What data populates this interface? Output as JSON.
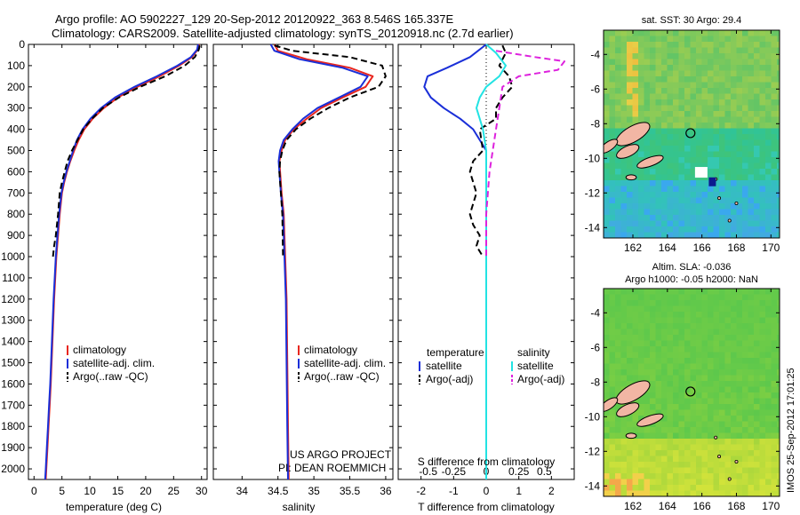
{
  "header": {
    "title_line1": "Argo profile: AO 5902227_129 20-Sep-2012 20120922_363 8.546S 165.337E",
    "title_line2": "Climatology: CARS2009. Satellite-adjusted climatology: synTS_20120918.nc (2.7d earlier)"
  },
  "footer": {
    "project_line1": "US ARGO PROJECT",
    "project_line2": "PI: DEAN ROEMMICH",
    "timestamp": "IMOS 25-Sep-2012 17:01:25"
  },
  "colors": {
    "climatology": "#e8271f",
    "satellite": "#1a2fd8",
    "argo": "#000000",
    "temp_satellite": "#1a2fd8",
    "temp_argo": "#000000",
    "sal_satellite": "#22e3e3",
    "sal_argo": "#dd22dd"
  },
  "chart_data": [
    {
      "id": "temperature",
      "type": "line",
      "xlabel": "temperature (deg C)",
      "xlim": [
        -1,
        31
      ],
      "xticks": [
        0,
        5,
        10,
        15,
        20,
        25,
        30
      ],
      "ylim": [
        2050,
        0
      ],
      "yticks": [
        0,
        100,
        200,
        300,
        400,
        500,
        600,
        700,
        800,
        900,
        1000,
        1100,
        1200,
        1300,
        1400,
        1500,
        1600,
        1700,
        1800,
        1900,
        2000
      ],
      "legend": [
        "climatology",
        "satellite-adj. clim.",
        "Argo(..raw -QC)"
      ],
      "legend_position": "lower-right",
      "series": [
        {
          "name": "climatology",
          "style": "solid",
          "x": [
            29.6,
            29.3,
            28.3,
            26.0,
            22.5,
            18.5,
            15.0,
            12.5,
            10.5,
            9.0,
            8.0,
            7.2,
            6.5,
            5.9,
            5.4,
            5.0,
            4.6,
            4.0,
            3.6,
            3.3,
            3.0,
            2.8,
            2.6,
            2.4,
            2.2,
            2.1
          ],
          "y": [
            0,
            25,
            60,
            100,
            150,
            200,
            250,
            300,
            350,
            400,
            450,
            500,
            550,
            600,
            650,
            700,
            800,
            1000,
            1200,
            1400,
            1600,
            1700,
            1800,
            1900,
            2000,
            2050
          ]
        },
        {
          "name": "satellite-adj. clim.",
          "style": "solid",
          "x": [
            29.4,
            29.2,
            28.1,
            25.7,
            22.0,
            18.0,
            14.5,
            12.0,
            10.1,
            8.7,
            7.7,
            7.0,
            6.4,
            5.8,
            5.3,
            4.9,
            4.5,
            3.9,
            3.5,
            3.2,
            2.9,
            2.7,
            2.5,
            2.3,
            2.1,
            2.0
          ],
          "y": [
            0,
            25,
            60,
            100,
            150,
            200,
            250,
            300,
            350,
            400,
            450,
            500,
            550,
            600,
            650,
            700,
            800,
            1000,
            1200,
            1400,
            1600,
            1700,
            1800,
            1900,
            2000,
            2050
          ]
        },
        {
          "name": "Argo(..raw -QC)",
          "style": "dashed",
          "x": [
            29.7,
            29.5,
            28.8,
            27.0,
            23.5,
            19.0,
            15.2,
            12.3,
            10.4,
            8.8,
            7.8,
            6.8,
            6.0,
            5.5,
            5.0,
            4.6,
            4.3,
            3.9,
            3.6,
            3.4
          ],
          "y": [
            5,
            25,
            60,
            100,
            150,
            200,
            250,
            300,
            350,
            400,
            450,
            500,
            550,
            600,
            650,
            700,
            800,
            900,
            950,
            1000
          ]
        }
      ]
    },
    {
      "id": "salinity",
      "type": "line",
      "xlabel": "salinity",
      "xlim": [
        33.6,
        36.1
      ],
      "xticks": [
        34,
        34.5,
        35,
        35.5,
        36
      ],
      "ylim": [
        2050,
        0
      ],
      "legend": [
        "climatology",
        "satellite-adj. clim.",
        "Argo(..raw -QC)"
      ],
      "legend_position": "lower-right",
      "series": [
        {
          "name": "climatology",
          "style": "solid",
          "x": [
            34.45,
            34.5,
            34.9,
            35.5,
            35.82,
            35.72,
            35.4,
            35.1,
            34.9,
            34.72,
            34.6,
            34.55,
            34.52,
            34.53,
            34.55,
            34.58,
            34.6,
            34.62,
            34.63,
            34.64,
            34.65
          ],
          "y": [
            0,
            30,
            70,
            110,
            150,
            200,
            250,
            300,
            350,
            400,
            450,
            500,
            550,
            600,
            700,
            800,
            1000,
            1200,
            1500,
            1800,
            2050
          ]
        },
        {
          "name": "satellite-adj. clim.",
          "style": "solid",
          "x": [
            34.4,
            34.45,
            34.8,
            35.4,
            35.75,
            35.65,
            35.35,
            35.05,
            34.85,
            34.7,
            34.58,
            34.53,
            34.51,
            34.52,
            34.54,
            34.57,
            34.59,
            34.61,
            34.62,
            34.63,
            34.64
          ],
          "y": [
            0,
            30,
            70,
            110,
            150,
            200,
            250,
            300,
            350,
            400,
            450,
            500,
            550,
            600,
            700,
            800,
            1000,
            1200,
            1500,
            1800,
            2050
          ]
        },
        {
          "name": "Argo(..raw -QC)",
          "style": "dashed",
          "x": [
            34.45,
            34.7,
            35.5,
            35.95,
            36.0,
            35.9,
            35.5,
            35.2,
            34.95,
            34.75,
            34.62,
            34.56,
            34.53,
            34.52,
            34.54,
            34.56,
            34.57
          ],
          "y": [
            5,
            30,
            60,
            100,
            150,
            200,
            250,
            300,
            350,
            400,
            450,
            500,
            550,
            600,
            700,
            800,
            1000
          ]
        }
      ]
    },
    {
      "id": "difference",
      "type": "line",
      "xlabel": "T difference from climatology",
      "xlabel_top": "S difference from climatology",
      "xlim": [
        -2.7,
        2.7
      ],
      "xticks": [
        -2,
        -1,
        0,
        1,
        2
      ],
      "xtick_labels_top": [
        "-0.5",
        "-0.25",
        "0",
        "0.25",
        "0.5"
      ],
      "ylim": [
        2050,
        0
      ],
      "legend_temperature_title": "temperature",
      "legend_salinity_title": "salinity",
      "legend_temperature": [
        "satellite",
        "Argo(-adj)"
      ],
      "legend_salinity": [
        "satellite",
        "Argo(-adj)"
      ],
      "series": [
        {
          "name": "temperature satellite",
          "style": "solid",
          "x": [
            0.0,
            -0.5,
            -1.2,
            -1.8,
            -1.9,
            -1.7,
            -1.3,
            -0.8,
            -0.4,
            -0.2,
            0.0,
            0.0,
            0.0,
            0.0,
            0.0
          ],
          "y": [
            0,
            60,
            110,
            150,
            200,
            250,
            300,
            350,
            400,
            450,
            500,
            700,
            1000,
            1500,
            2050
          ]
        },
        {
          "name": "temperature Argo(-adj)",
          "style": "dashed",
          "x": [
            0.5,
            0.6,
            0.4,
            0.7,
            0.8,
            0.5,
            0.3,
            0.3,
            -0.2,
            -0.1,
            -0.4,
            -0.5,
            -0.3,
            -0.5,
            -0.4,
            -0.2,
            -0.3,
            -0.1
          ],
          "y": [
            5,
            40,
            100,
            150,
            200,
            250,
            300,
            350,
            400,
            500,
            550,
            600,
            700,
            800,
            850,
            900,
            950,
            1000
          ]
        },
        {
          "name": "salinity satellite",
          "style": "solid",
          "x": [
            0.0,
            0.3,
            0.6,
            0.4,
            0.0,
            -0.2,
            -0.3,
            -0.2,
            -0.1,
            0.0,
            0.0,
            0.0,
            0.0,
            0.0
          ],
          "y": [
            0,
            40,
            100,
            150,
            200,
            250,
            300,
            350,
            400,
            500,
            700,
            1000,
            1500,
            2050
          ]
        },
        {
          "name": "salinity Argo(-adj)",
          "style": "dashed",
          "x": [
            0.3,
            1.5,
            2.4,
            2.2,
            1.0,
            0.5,
            0.4,
            0.3,
            0.1,
            0.0,
            0.0,
            0.0
          ],
          "y": [
            30,
            60,
            80,
            120,
            150,
            200,
            300,
            400,
            600,
            800,
            900,
            1000
          ]
        }
      ]
    },
    {
      "id": "sst_map",
      "type": "heatmap",
      "title": "sat. SST: 30 Argo: 29.4",
      "xlim": [
        160.3,
        170.5
      ],
      "ylim": [
        -14.6,
        -2.6
      ],
      "xticks": [
        162,
        164,
        166,
        168,
        170
      ],
      "yticks": [
        -4,
        -6,
        -8,
        -10,
        -12,
        -14
      ],
      "argo_position": [
        165.337,
        -8.546
      ]
    },
    {
      "id": "sla_map",
      "type": "heatmap",
      "title_line1": "Altim. SLA: -0.036",
      "title_line2": "Argo h1000: -0.05 h2000: NaN",
      "xlim": [
        160.3,
        170.5
      ],
      "ylim": [
        -14.6,
        -2.6
      ],
      "xticks": [
        162,
        164,
        166,
        168,
        170
      ],
      "yticks": [
        -4,
        -6,
        -8,
        -10,
        -12,
        -14
      ],
      "argo_position": [
        165.337,
        -8.546
      ]
    }
  ]
}
